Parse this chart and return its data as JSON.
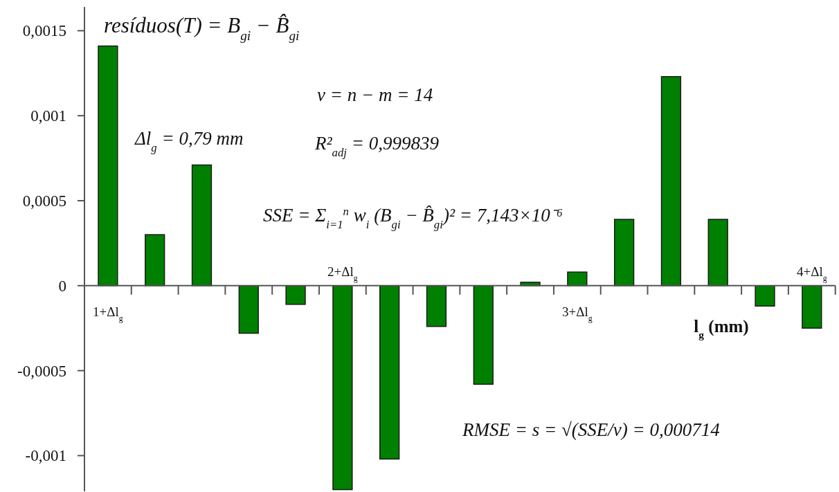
{
  "chart_data": {
    "type": "bar",
    "title": "resíduos(T) = B$_{gi}$ − B̂$_{gi}$",
    "xlabel": "l$_{g}$ (mm)",
    "categories": [
      "1+Δl$_{g}$",
      null,
      null,
      null,
      null,
      "2+Δl$_{g}$",
      null,
      null,
      null,
      null,
      "3+Δl$_{g}$",
      null,
      null,
      null,
      null,
      "4+Δl$_{g}$"
    ],
    "values": [
      0.00141,
      0.0003,
      0.00071,
      -0.00028,
      -0.00011,
      -0.0012,
      -0.00102,
      -0.00024,
      -0.00058,
      2e-05,
      8e-05,
      0.00039,
      0.00123,
      0.00039,
      -0.00012,
      -0.00025
    ],
    "color": "#008000",
    "ylim": [
      -0.00121,
      0.00164
    ],
    "yticks": [
      {
        "value": -0.001,
        "label": "-0,001"
      },
      {
        "value": -0.0005,
        "label": "-0,0005"
      },
      0,
      {
        "value": 0.0005,
        "label": "0,0005"
      },
      {
        "value": 0.001,
        "label": "0,001"
      },
      {
        "value": 0.0015,
        "label": "0,0015"
      }
    ],
    "annotations": [
      "Δl$_{g}$ = 0,79 mm",
      "ν = n − m = 14",
      "R²$_{adj}$ = 0,999839",
      "SSE = Σ$_{i=1}$$^{n}$ w$_{i}$ (B$_{gi}$ − B̂$_{gi}$)² = 7,143×10⁻⁶",
      "RMSE = s = √(SSE/ν) = 0,000714"
    ]
  }
}
